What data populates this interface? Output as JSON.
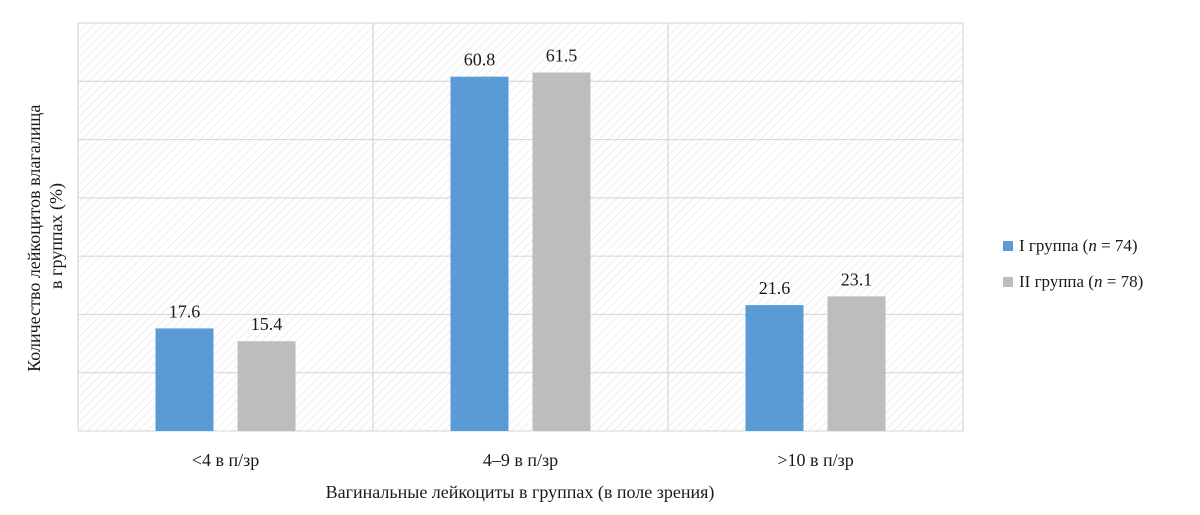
{
  "chart_data": {
    "type": "bar",
    "title": "",
    "xlabel": "Вагинальные лейкоциты в группах (в поле зрения)",
    "ylabel_lines": [
      "Количество лейкоцитов влагалища",
      "в группах (%)"
    ],
    "categories": [
      "<4 в п/зр",
      "4–9 в п/зр",
      ">10 в п/зр"
    ],
    "ylim": [
      0,
      70
    ],
    "ytick_step": 10,
    "show_ytick_labels": false,
    "grid": true,
    "legend_position": "right",
    "series": [
      {
        "name": "I группа (n = 74)",
        "name_prefix": "I группа (",
        "name_italic": "n",
        "name_suffix": " = 74)",
        "color": "#5b9bd5",
        "values": [
          17.6,
          60.8,
          21.6
        ]
      },
      {
        "name": "II группа (n = 78)",
        "name_prefix": "II группа (",
        "name_italic": "n",
        "name_suffix": " = 78)",
        "color": "#bdbdbd",
        "values": [
          15.4,
          61.5,
          23.1
        ]
      }
    ],
    "colors": {
      "plot_hatch": "#e4e4e4",
      "grid": "#d4d4d4",
      "border": "#cfcfcf"
    }
  }
}
